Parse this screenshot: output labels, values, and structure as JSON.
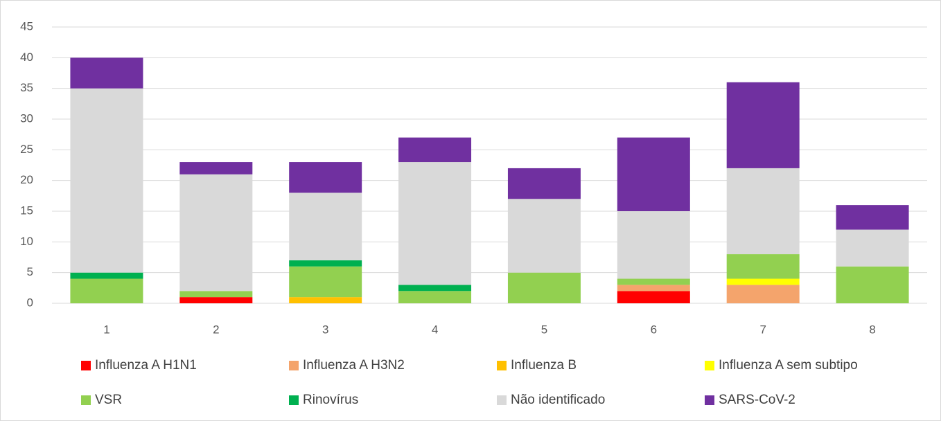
{
  "chart_data": {
    "type": "stacked_bar",
    "categories": [
      "1",
      "2",
      "3",
      "4",
      "5",
      "6",
      "7",
      "8"
    ],
    "series": [
      {
        "name": "Influenza A H1N1",
        "color": "#ff0000",
        "values": [
          0,
          1,
          0,
          0,
          0,
          2,
          0,
          0
        ]
      },
      {
        "name": "Influenza A H3N2",
        "color": "#f4a46c",
        "values": [
          0,
          0,
          0,
          0,
          0,
          1,
          3,
          0
        ]
      },
      {
        "name": "Influenza B",
        "color": "#ffc000",
        "values": [
          0,
          0,
          1,
          0,
          0,
          0,
          0,
          0
        ]
      },
      {
        "name": "Influenza A sem subtipo",
        "color": "#ffff00",
        "values": [
          0,
          0,
          0,
          0,
          0,
          0,
          1,
          0
        ]
      },
      {
        "name": "VSR",
        "color": "#92d050",
        "values": [
          4,
          1,
          5,
          2,
          5,
          1,
          4,
          6
        ]
      },
      {
        "name": "Rinovírus",
        "color": "#00b050",
        "values": [
          1,
          0,
          1,
          1,
          0,
          0,
          0,
          0
        ]
      },
      {
        "name": "Não identificado",
        "color": "#d9d9d9",
        "values": [
          30,
          19,
          11,
          20,
          12,
          11,
          14,
          6
        ]
      },
      {
        "name": "SARS-CoV-2",
        "color": "#7030a0",
        "values": [
          5,
          2,
          5,
          4,
          5,
          12,
          14,
          4
        ]
      }
    ],
    "ylim": [
      0,
      45
    ],
    "yticks": [
      0,
      5,
      10,
      15,
      20,
      25,
      30,
      35,
      40,
      45
    ],
    "grid": true,
    "legend": "bottom"
  }
}
